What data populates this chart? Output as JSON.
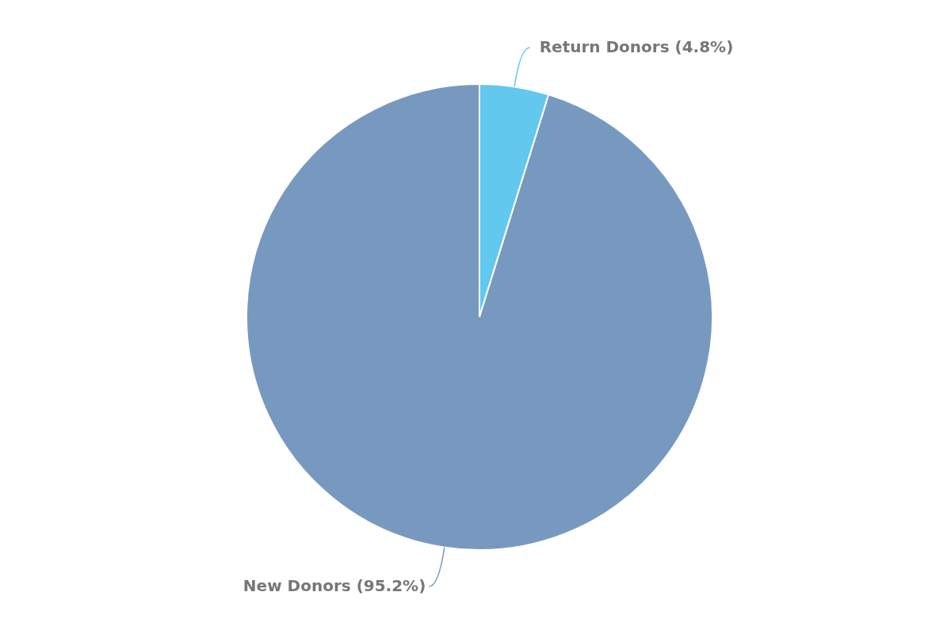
{
  "chart_data": {
    "type": "pie",
    "categories": [
      "Return Donors",
      "New Donors"
    ],
    "values": [
      4.8,
      95.2
    ],
    "colors": [
      "#62c8ee",
      "#7899bf"
    ],
    "value_labels": [
      "(4.8%)",
      "(95.2%)"
    ]
  }
}
